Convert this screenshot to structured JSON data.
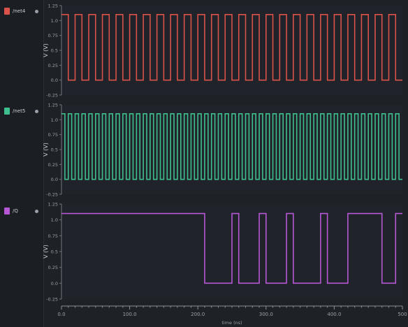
{
  "signals": [
    {
      "name": "/net4",
      "color": "#d9534a"
    },
    {
      "name": "/net5",
      "color": "#3fbf8f"
    },
    {
      "name": "/Q",
      "color": "#b657d6"
    }
  ],
  "chart_data": [
    {
      "type": "line",
      "series": [
        {
          "name": "/net4",
          "color": "#d9534a",
          "kind": "clock",
          "period": 20,
          "duty": 0.5,
          "high": 1.1,
          "low": 0.0
        }
      ],
      "x": [
        0,
        500
      ],
      "ylabel": "V (V)",
      "yticks": [
        "1.25",
        "1.0",
        "0.75",
        "0.5",
        "0.25",
        "0.0",
        "-0.25"
      ],
      "ylim": [
        -0.25,
        1.25
      ]
    },
    {
      "type": "line",
      "series": [
        {
          "name": "/net5",
          "color": "#3fbf8f",
          "kind": "clock",
          "period": 10,
          "duty": 0.5,
          "high": 1.1,
          "low": 0.0
        }
      ],
      "x": [
        0,
        500
      ],
      "ylabel": "V (V)",
      "yticks": [
        "1.25",
        "1.0",
        "0.75",
        "0.5",
        "0.25",
        "0.0",
        "-0.25"
      ],
      "ylim": [
        -0.25,
        1.25
      ]
    },
    {
      "type": "line",
      "series": [
        {
          "name": "/Q",
          "color": "#b657d6",
          "kind": "steps",
          "high": 1.1,
          "low": 0.0,
          "edges": [
            [
              0,
              1
            ],
            [
              210,
              0
            ],
            [
              250,
              1
            ],
            [
              260,
              0
            ],
            [
              290,
              1
            ],
            [
              300,
              0
            ],
            [
              330,
              1
            ],
            [
              340,
              0
            ],
            [
              380,
              1
            ],
            [
              390,
              0
            ],
            [
              420,
              1
            ],
            [
              470,
              0
            ],
            [
              490,
              1
            ],
            [
              500,
              1
            ]
          ]
        }
      ],
      "x": [
        0,
        500
      ],
      "ylabel": "V (V)",
      "yticks": [
        "1.25",
        "1.0",
        "0.75",
        "0.5",
        "0.25",
        "0.0",
        "-0.25"
      ],
      "ylim": [
        -0.25,
        1.25
      ],
      "xticks": [
        "0.0",
        "100.0",
        "200.0",
        "300.0",
        "400.0",
        "500"
      ],
      "xlabel": "time (ns)"
    }
  ]
}
